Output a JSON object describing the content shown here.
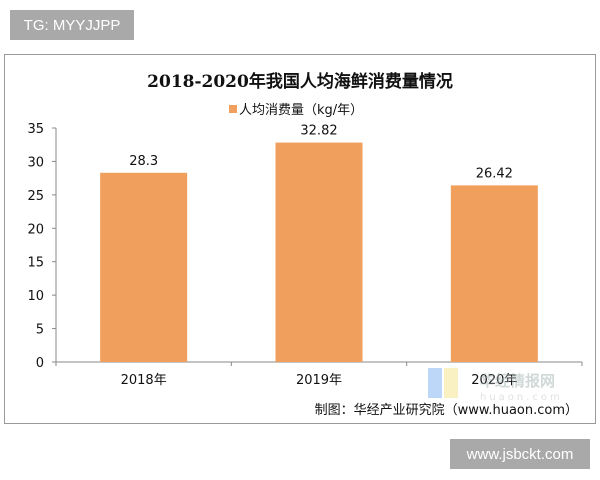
{
  "watermarks": {
    "top_left": "TG: MYYJJPP",
    "bottom_right": "www.jsbckt.com"
  },
  "logo": {
    "name": "华经情报网",
    "domain": "huaon.com"
  },
  "source": "制图：华经产业研究院（www.huaon.com）",
  "chart_data": {
    "type": "bar",
    "title": "2018-2020年我国人均海鲜消费量情况",
    "categories": [
      "2018年",
      "2019年",
      "2020年"
    ],
    "series": [
      {
        "name": "人均消费量（kg/年）",
        "values": [
          28.3,
          32.82,
          26.42
        ],
        "color": "#f0a05c"
      }
    ],
    "data_labels": [
      "28.3",
      "32.82",
      "26.42"
    ],
    "ylim": [
      0,
      35
    ],
    "yticks": [
      0,
      5,
      10,
      15,
      20,
      25,
      30,
      35
    ],
    "grid": false,
    "legend": "top-center"
  }
}
